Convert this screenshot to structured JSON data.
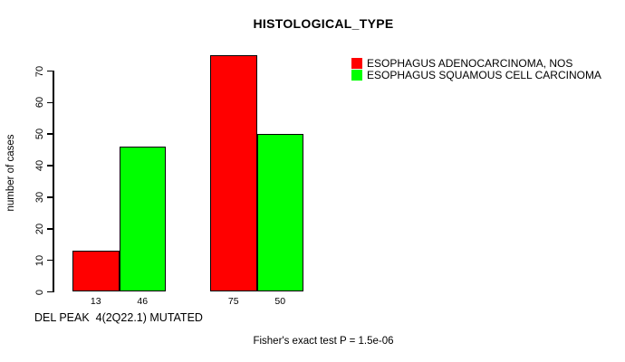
{
  "title": "HISTOLOGICAL_TYPE",
  "y_axis": {
    "label": "number of cases",
    "ticks": [
      "0",
      "10",
      "20",
      "30",
      "40",
      "50",
      "60",
      "70"
    ]
  },
  "x_axis": {
    "label": "DEL PEAK  4(2Q22.1) MUTATED"
  },
  "legend": [
    {
      "label": "ESOPHAGUS ADENOCARCINOMA, NOS",
      "color": "#ff0000"
    },
    {
      "label": "ESOPHAGUS SQUAMOUS CELL CARCINOMA",
      "color": "#00ff00"
    }
  ],
  "annotation": "Fisher's exact test P = 1.5e-06",
  "colors": {
    "red_series": "#ff0000",
    "green_series": "#00ff00",
    "axis": "#000000",
    "background": "#ffffff"
  },
  "chart_data": {
    "type": "bar",
    "title": "HISTOLOGICAL_TYPE",
    "ylabel": "number of cases",
    "xlabel": "DEL PEAK  4(2Q22.1) MUTATED",
    "ylim": [
      0,
      70
    ],
    "yticks": [
      0,
      10,
      20,
      30,
      40,
      50,
      60,
      70
    ],
    "grid": false,
    "legend_position": "top-right",
    "groups": 2,
    "series": [
      {
        "name": "ESOPHAGUS ADENOCARCINOMA, NOS",
        "color": "#ff0000",
        "values": [
          13,
          75
        ]
      },
      {
        "name": "ESOPHAGUS SQUAMOUS CELL CARCINOMA",
        "color": "#00ff00",
        "values": [
          46,
          50
        ]
      }
    ],
    "bar_value_labels": [
      "13",
      "46",
      "75",
      "50"
    ],
    "annotation": "Fisher's exact test P = 1.5e-06"
  }
}
